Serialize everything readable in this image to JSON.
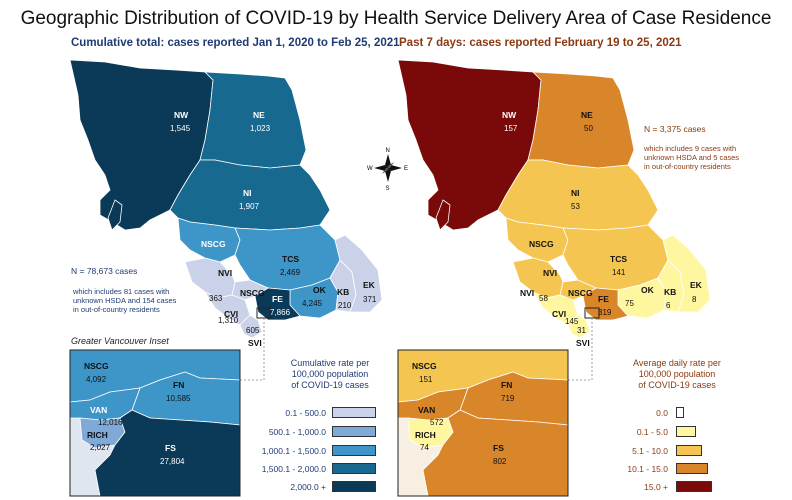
{
  "title": "Geographic Distribution of COVID-19 by Health Service Delivery Area of Case Residence",
  "left_panel": {
    "subtitle": "Cumulative total: cases reported Jan 1, 2020 to Feb 25, 2021",
    "total_cases": "N = 78,673 cases",
    "total_note_1": "which includes 81 cases with",
    "total_note_2": "unknown HSDA and 154 cases",
    "total_note_3": "in out-of-country residents",
    "regions": [
      {
        "name": "NW",
        "value": "1,545"
      },
      {
        "name": "NE",
        "value": "1,023"
      },
      {
        "name": "NI",
        "value": "1,907"
      },
      {
        "name": "NSCG",
        "value": ""
      },
      {
        "name": "TCS",
        "value": "2,469"
      },
      {
        "name": "NVI",
        "value": "363"
      },
      {
        "name": "NSCG",
        "value": "1,310"
      },
      {
        "name": "CVI",
        "value": ""
      },
      {
        "name": "FE",
        "value": "7,866"
      },
      {
        "name": "OK",
        "value": "4,245"
      },
      {
        "name": "KB",
        "value": "210"
      },
      {
        "name": "EK",
        "value": "371"
      },
      {
        "name": "SVI",
        "value": "605"
      }
    ],
    "inset_title": "Greater Vancouver Inset",
    "inset_regions": [
      {
        "name": "NSCG",
        "value": "4,092"
      },
      {
        "name": "FN",
        "value": "10,585"
      },
      {
        "name": "VAN",
        "value": "12,016"
      },
      {
        "name": "RICH",
        "value": "2,027"
      },
      {
        "name": "FS",
        "value": "27,804"
      }
    ],
    "legend_title_1": "Cumulative rate per",
    "legend_title_2": "100,000 population",
    "legend_title_3": "of COVID-19 cases",
    "legend": [
      {
        "label": "0.1 - 500.0",
        "color": "#c9d2e8"
      },
      {
        "label": "500.1 - 1,000.0",
        "color": "#7fa9d6"
      },
      {
        "label": "1,000.1 - 1,500.0",
        "color": "#3e95c8"
      },
      {
        "label": "1,500.1 - 2,000.0",
        "color": "#17698f"
      },
      {
        "label": "2,000.0 +",
        "color": "#0a3a58"
      }
    ]
  },
  "right_panel": {
    "subtitle": "Past 7 days: cases reported February 19 to 25, 2021",
    "total_cases": "N = 3,375 cases",
    "total_note_1": "which includes 9 cases with",
    "total_note_2": "unknown HSDA and 5 cases",
    "total_note_3": "in out-of-country residents",
    "regions": [
      {
        "name": "NW",
        "value": "157"
      },
      {
        "name": "NE",
        "value": "50"
      },
      {
        "name": "NI",
        "value": "53"
      },
      {
        "name": "NSCG",
        "value": ""
      },
      {
        "name": "TCS",
        "value": "141"
      },
      {
        "name": "NVI",
        "value": ""
      },
      {
        "name": "NVI",
        "value": "58"
      },
      {
        "name": "NSCG",
        "value": ""
      },
      {
        "name": "CVI",
        "value": "145"
      },
      {
        "name": "FE",
        "value": "319"
      },
      {
        "name": "OK",
        "value": "75"
      },
      {
        "name": "KB",
        "value": "6"
      },
      {
        "name": "EK",
        "value": "8"
      },
      {
        "name": "SVI",
        "value": "31"
      }
    ],
    "inset_regions": [
      {
        "name": "NSCG",
        "value": "151"
      },
      {
        "name": "FN",
        "value": "719"
      },
      {
        "name": "VAN",
        "value": "572"
      },
      {
        "name": "RICH",
        "value": "74"
      },
      {
        "name": "FS",
        "value": "802"
      }
    ],
    "legend_title_1": "Average daily rate per",
    "legend_title_2": "100,000 population",
    "legend_title_3": "of COVID-19 cases",
    "legend": [
      {
        "label": "0.0",
        "color": "#ffffff"
      },
      {
        "label": "0.1 - 5.0",
        "color": "#fff7a0"
      },
      {
        "label": "5.1 - 10.0",
        "color": "#f4c550"
      },
      {
        "label": "10.1 - 15.0",
        "color": "#d9862a"
      },
      {
        "label": "15.0 +",
        "color": "#7a0a0a"
      }
    ]
  },
  "compass": {
    "n": "N",
    "s": "S",
    "e": "E",
    "w": "W"
  },
  "colors": {
    "left_title": "#1f3b73",
    "right_title": "#8a3a10"
  }
}
